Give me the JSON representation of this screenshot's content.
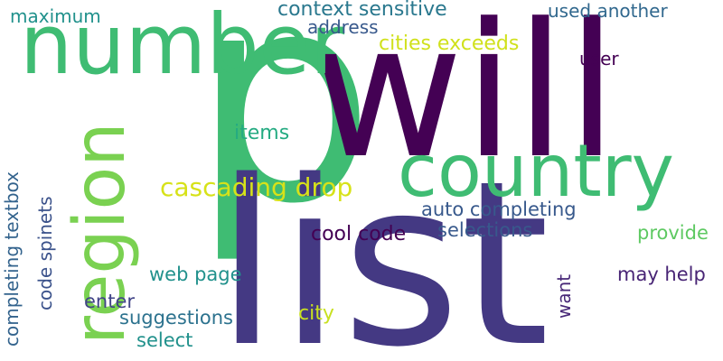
{
  "words": {
    "p": {
      "text": "p",
      "color": "#3fbc73"
    },
    "will": {
      "text": "will",
      "color": "#440154"
    },
    "list": {
      "text": "list",
      "color": "#443983"
    },
    "number": {
      "text": "number",
      "color": "#3fbc73"
    },
    "country": {
      "text": "country",
      "color": "#3fbc73"
    },
    "region": {
      "text": "region",
      "color": "#7ad151"
    },
    "cascading": {
      "text": "cascading drop",
      "color": "#d7e219"
    },
    "context": {
      "text": "context sensitive",
      "color": "#2a788e"
    },
    "address": {
      "text": "address",
      "color": "#38598c"
    },
    "cities": {
      "text": "cities exceeds",
      "color": "#d0e11c"
    },
    "used": {
      "text": "used another",
      "color": "#31688e"
    },
    "user": {
      "text": "user",
      "color": "#440154"
    },
    "maximum": {
      "text": "maximum",
      "color": "#21918c"
    },
    "items": {
      "text": "items",
      "color": "#25ab82"
    },
    "auto": {
      "text": "auto completing",
      "color": "#38598c"
    },
    "selections": {
      "text": "selections",
      "color": "#38598c"
    },
    "cool": {
      "text": "cool code",
      "color": "#440154"
    },
    "provide": {
      "text": "provide",
      "color": "#5ec962"
    },
    "mayhelp": {
      "text": "may help",
      "color": "#482475"
    },
    "webpage": {
      "text": "web page",
      "color": "#21918c"
    },
    "enter": {
      "text": "enter",
      "color": "#414487"
    },
    "suggest": {
      "text": "suggestions",
      "color": "#2c728e"
    },
    "city": {
      "text": "city",
      "color": "#c8e020"
    },
    "select": {
      "text": "select",
      "color": "#21918c"
    },
    "completing": {
      "text": "completing textbox",
      "color": "#33638d"
    },
    "spinets": {
      "text": "code spinets",
      "color": "#3b528b"
    },
    "want": {
      "text": "want",
      "color": "#482878"
    }
  }
}
